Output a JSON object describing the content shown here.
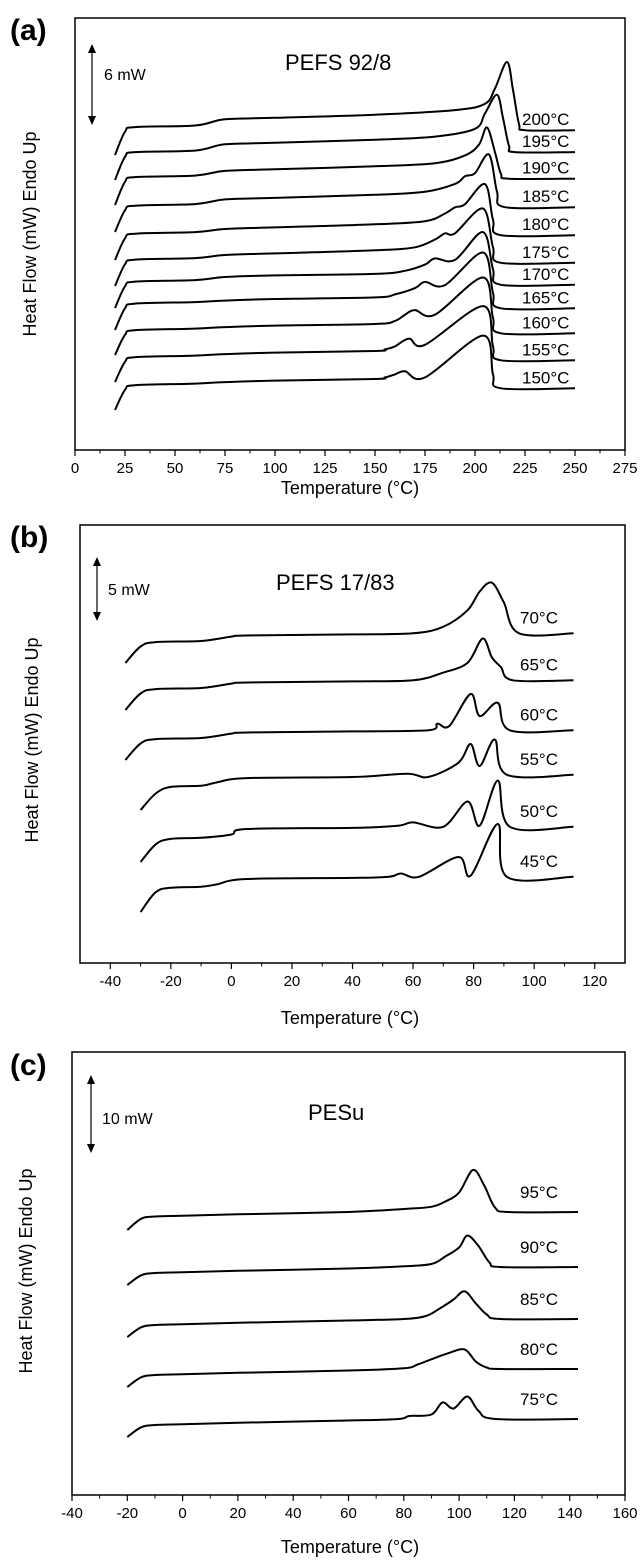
{
  "charts": [
    {
      "panel_label": "(a)",
      "title": "PEFS 92/8",
      "xlabel": "Temperature (°C)",
      "ylabel": "Heat Flow (mW) Endo Up",
      "scale_label": "6 mW",
      "xlim": [
        0,
        275
      ],
      "xticks": [
        "0",
        "25",
        "50",
        "75",
        "100",
        "125",
        "150",
        "175",
        "200",
        "225",
        "250",
        "275"
      ],
      "curves": [
        "200°C",
        "195°C",
        "190°C",
        "185°C",
        "180°C",
        "175°C",
        "170°C",
        "165°C",
        "160°C",
        "155°C",
        "150°C"
      ]
    },
    {
      "panel_label": "(b)",
      "title": "PEFS 17/83",
      "xlabel": "Temperature (°C)",
      "ylabel": "Heat Flow (mW) Endo Up",
      "scale_label": "5 mW",
      "xlim": [
        -50,
        130
      ],
      "xticks": [
        "-40",
        "-20",
        "0",
        "20",
        "40",
        "60",
        "80",
        "100",
        "120"
      ],
      "curves": [
        "70°C",
        "65°C",
        "60°C",
        "55°C",
        "50°C",
        "45°C"
      ]
    },
    {
      "panel_label": "(c)",
      "title": "PESu",
      "xlabel": "Temperature (°C)",
      "ylabel": "Heat Flow (mW) Endo Up",
      "scale_label": "10 mW",
      "xlim": [
        -40,
        160
      ],
      "xticks": [
        "-40",
        "-20",
        "0",
        "20",
        "40",
        "60",
        "80",
        "100",
        "120",
        "140",
        "160"
      ],
      "curves": [
        "95°C",
        "90°C",
        "85°C",
        "80°C",
        "75°C"
      ]
    }
  ],
  "chart_data": [
    {
      "type": "line",
      "title": "PEFS 92/8",
      "xlabel": "Temperature (°C)",
      "ylabel": "Heat Flow (mW) Endo Up",
      "xlim": [
        0,
        275
      ],
      "grid": false,
      "series": [
        {
          "name": "200°C",
          "x": [
            20,
            25,
            30,
            60,
            75,
            100,
            150,
            190,
            205,
            210,
            216,
            219,
            222,
            225,
            250
          ],
          "y": [
            0,
            1.5,
            1.8,
            1.9,
            2.3,
            2.4,
            2.6,
            2.9,
            3.3,
            4.3,
            6.0,
            4.2,
            2.0,
            1.6,
            1.6
          ]
        },
        {
          "name": "195°C",
          "x": [
            20,
            25,
            30,
            60,
            75,
            100,
            150,
            180,
            200,
            205,
            211,
            214,
            217,
            220,
            250
          ],
          "y": [
            0,
            1.5,
            1.8,
            1.9,
            2.3,
            2.4,
            2.6,
            2.8,
            3.3,
            4.3,
            5.5,
            4.0,
            2.2,
            1.8,
            1.8
          ]
        },
        {
          "name": "190°C",
          "x": [
            20,
            25,
            30,
            60,
            75,
            100,
            150,
            180,
            195,
            202,
            206,
            210,
            213,
            217,
            250
          ],
          "y": [
            0,
            1.5,
            1.8,
            1.9,
            2.2,
            2.3,
            2.5,
            2.7,
            3.2,
            3.9,
            5.0,
            3.4,
            2.0,
            1.7,
            1.7
          ]
        },
        {
          "name": "185°C",
          "x": [
            20,
            25,
            30,
            60,
            75,
            100,
            150,
            175,
            190,
            195,
            200,
            207,
            211,
            215,
            250
          ],
          "y": [
            0,
            1.4,
            1.7,
            1.8,
            2.1,
            2.2,
            2.4,
            2.6,
            3.1,
            3.6,
            3.8,
            5.0,
            2.6,
            1.6,
            1.6
          ]
        },
        {
          "name": "180°C",
          "x": [
            20,
            25,
            30,
            60,
            75,
            100,
            150,
            175,
            185,
            190,
            195,
            205,
            209,
            213,
            250
          ],
          "y": [
            0,
            1.4,
            1.7,
            1.8,
            2.0,
            2.1,
            2.3,
            2.5,
            3.0,
            3.4,
            3.6,
            4.9,
            2.6,
            1.6,
            1.6
          ]
        },
        {
          "name": "175°C",
          "x": [
            20,
            25,
            30,
            60,
            75,
            100,
            150,
            170,
            180,
            185,
            190,
            204,
            209,
            213,
            250
          ],
          "y": [
            0,
            1.4,
            1.7,
            1.8,
            2.0,
            2.1,
            2.3,
            2.5,
            3.0,
            3.4,
            3.4,
            5.0,
            2.5,
            1.5,
            1.5
          ]
        },
        {
          "name": "170°C",
          "x": [
            20,
            25,
            30,
            60,
            75,
            100,
            150,
            165,
            175,
            180,
            190,
            204,
            209,
            213,
            250
          ],
          "y": [
            0,
            1.4,
            1.7,
            1.8,
            2.0,
            2.1,
            2.2,
            2.4,
            2.8,
            3.2,
            3.1,
            4.9,
            2.5,
            1.5,
            1.5
          ]
        },
        {
          "name": "165°C",
          "x": [
            20,
            25,
            30,
            60,
            75,
            100,
            150,
            160,
            170,
            175,
            185,
            204,
            209,
            213,
            250
          ],
          "y": [
            0,
            1.4,
            1.7,
            1.8,
            1.9,
            2.0,
            2.1,
            2.3,
            2.7,
            3.1,
            2.9,
            5.0,
            2.4,
            1.4,
            1.4
          ]
        },
        {
          "name": "160°C",
          "x": [
            20,
            25,
            30,
            60,
            75,
            100,
            150,
            160,
            165,
            170,
            180,
            204,
            209,
            213,
            250
          ],
          "y": [
            0,
            1.3,
            1.6,
            1.7,
            1.8,
            1.9,
            2.0,
            2.2,
            2.6,
            2.9,
            2.6,
            5.0,
            2.4,
            1.4,
            1.4
          ]
        },
        {
          "name": "155°C",
          "x": [
            20,
            25,
            30,
            60,
            75,
            100,
            150,
            155,
            160,
            167,
            175,
            204,
            209,
            213,
            250
          ],
          "y": [
            0,
            1.3,
            1.6,
            1.7,
            1.8,
            1.9,
            2.0,
            2.1,
            2.3,
            2.8,
            2.4,
            4.9,
            2.3,
            1.4,
            1.4
          ]
        },
        {
          "name": "150°C",
          "x": [
            20,
            25,
            30,
            60,
            75,
            100,
            150,
            155,
            160,
            165,
            175,
            204,
            209,
            213,
            250
          ],
          "y": [
            0,
            1.3,
            1.6,
            1.7,
            1.8,
            1.9,
            2.0,
            2.1,
            2.3,
            2.5,
            2.1,
            4.8,
            2.3,
            1.4,
            1.4
          ]
        }
      ]
    },
    {
      "type": "line",
      "title": "PEFS 17/83",
      "xlabel": "Temperature (°C)",
      "ylabel": "Heat Flow (mW) Endo Up",
      "xlim": [
        -50,
        130
      ],
      "grid": false,
      "series": [
        {
          "name": "70°C",
          "x": [
            -35,
            -30,
            -25,
            -10,
            0,
            5,
            40,
            60,
            70,
            78,
            82,
            86,
            90,
            95,
            113
          ],
          "y": [
            0,
            1.5,
            1.9,
            2.0,
            2.4,
            2.5,
            2.6,
            2.7,
            3.3,
            4.8,
            6.5,
            7.3,
            5.5,
            2.7,
            2.7
          ]
        },
        {
          "name": "65°C",
          "x": [
            -35,
            -30,
            -25,
            -10,
            0,
            5,
            40,
            60,
            70,
            78,
            83,
            86,
            89,
            93,
            113
          ],
          "y": [
            0,
            1.5,
            1.9,
            2.0,
            2.4,
            2.5,
            2.6,
            2.7,
            3.4,
            4.3,
            6.5,
            4.8,
            3.9,
            2.7,
            2.7
          ]
        },
        {
          "name": "60°C",
          "x": [
            -35,
            -30,
            -25,
            -10,
            0,
            5,
            40,
            65,
            68,
            72,
            79,
            82,
            88,
            92,
            113
          ],
          "y": [
            0,
            1.5,
            1.9,
            2.0,
            2.4,
            2.5,
            2.6,
            2.7,
            3.3,
            3.1,
            6.0,
            4.0,
            5.2,
            2.7,
            2.7
          ]
        },
        {
          "name": "55°C",
          "x": [
            -30,
            -25,
            -20,
            -10,
            -5,
            5,
            40,
            58,
            65,
            75,
            79,
            82,
            87,
            91,
            113
          ],
          "y": [
            0,
            1.5,
            2.1,
            2.2,
            2.5,
            2.9,
            3.0,
            3.3,
            3.0,
            4.3,
            6.0,
            4.0,
            6.4,
            3.2,
            3.2
          ]
        },
        {
          "name": "50°C",
          "x": [
            -30,
            -25,
            -20,
            -10,
            0,
            5,
            40,
            55,
            60,
            70,
            78,
            82,
            88,
            92,
            113
          ],
          "y": [
            0,
            1.6,
            2.1,
            2.2,
            2.5,
            3.0,
            3.1,
            3.3,
            3.6,
            3.2,
            5.5,
            3.3,
            7.4,
            3.2,
            3.2
          ]
        },
        {
          "name": "45°C",
          "x": [
            -30,
            -25,
            -20,
            -10,
            -5,
            5,
            40,
            52,
            56,
            62,
            75,
            79,
            88,
            91,
            113
          ],
          "y": [
            0,
            1.8,
            2.2,
            2.3,
            2.5,
            3.0,
            3.1,
            3.2,
            3.5,
            3.2,
            5.0,
            3.3,
            8.0,
            3.2,
            3.2
          ]
        }
      ]
    },
    {
      "type": "line",
      "title": "PESu",
      "xlabel": "Temperature (°C)",
      "ylabel": "Heat Flow (mW) Endo Up",
      "xlim": [
        -40,
        160
      ],
      "grid": false,
      "series": [
        {
          "name": "95°C",
          "x": [
            -20,
            -15,
            -10,
            0,
            20,
            60,
            80,
            90,
            95,
            100,
            105,
            109,
            113,
            118,
            143
          ],
          "y": [
            0,
            1.5,
            1.8,
            1.9,
            2.1,
            2.4,
            2.8,
            3.1,
            3.8,
            5.0,
            8.0,
            6.0,
            3.0,
            2.4,
            2.4
          ]
        },
        {
          "name": "90°C",
          "x": [
            -20,
            -15,
            -10,
            0,
            20,
            60,
            80,
            90,
            95,
            100,
            103,
            107,
            111,
            115,
            143
          ],
          "y": [
            0,
            1.3,
            1.6,
            1.7,
            1.9,
            2.2,
            2.5,
            2.8,
            3.8,
            5.0,
            6.6,
            5.2,
            3.0,
            2.4,
            2.4
          ]
        },
        {
          "name": "85°C",
          "x": [
            -20,
            -15,
            -10,
            0,
            20,
            60,
            80,
            88,
            93,
            98,
            102,
            106,
            110,
            115,
            143
          ],
          "y": [
            0,
            1.3,
            1.6,
            1.7,
            1.9,
            2.2,
            2.4,
            2.8,
            3.8,
            5.0,
            6.1,
            4.5,
            3.0,
            2.4,
            2.4
          ]
        },
        {
          "name": "80°C",
          "x": [
            -20,
            -15,
            -10,
            0,
            20,
            60,
            80,
            85,
            90,
            96,
            102,
            106,
            110,
            115,
            143
          ],
          "y": [
            0,
            1.3,
            1.6,
            1.7,
            1.9,
            2.2,
            2.5,
            3.0,
            3.7,
            4.5,
            5.0,
            3.4,
            2.6,
            2.4,
            2.4
          ]
        },
        {
          "name": "75°C",
          "x": [
            -20,
            -15,
            -10,
            0,
            20,
            60,
            78,
            82,
            90,
            94,
            98,
            103,
            107,
            113,
            143
          ],
          "y": [
            0,
            1.3,
            1.6,
            1.7,
            1.9,
            2.2,
            2.4,
            2.8,
            3.0,
            4.6,
            3.8,
            5.4,
            3.5,
            2.4,
            2.4
          ]
        }
      ]
    }
  ]
}
